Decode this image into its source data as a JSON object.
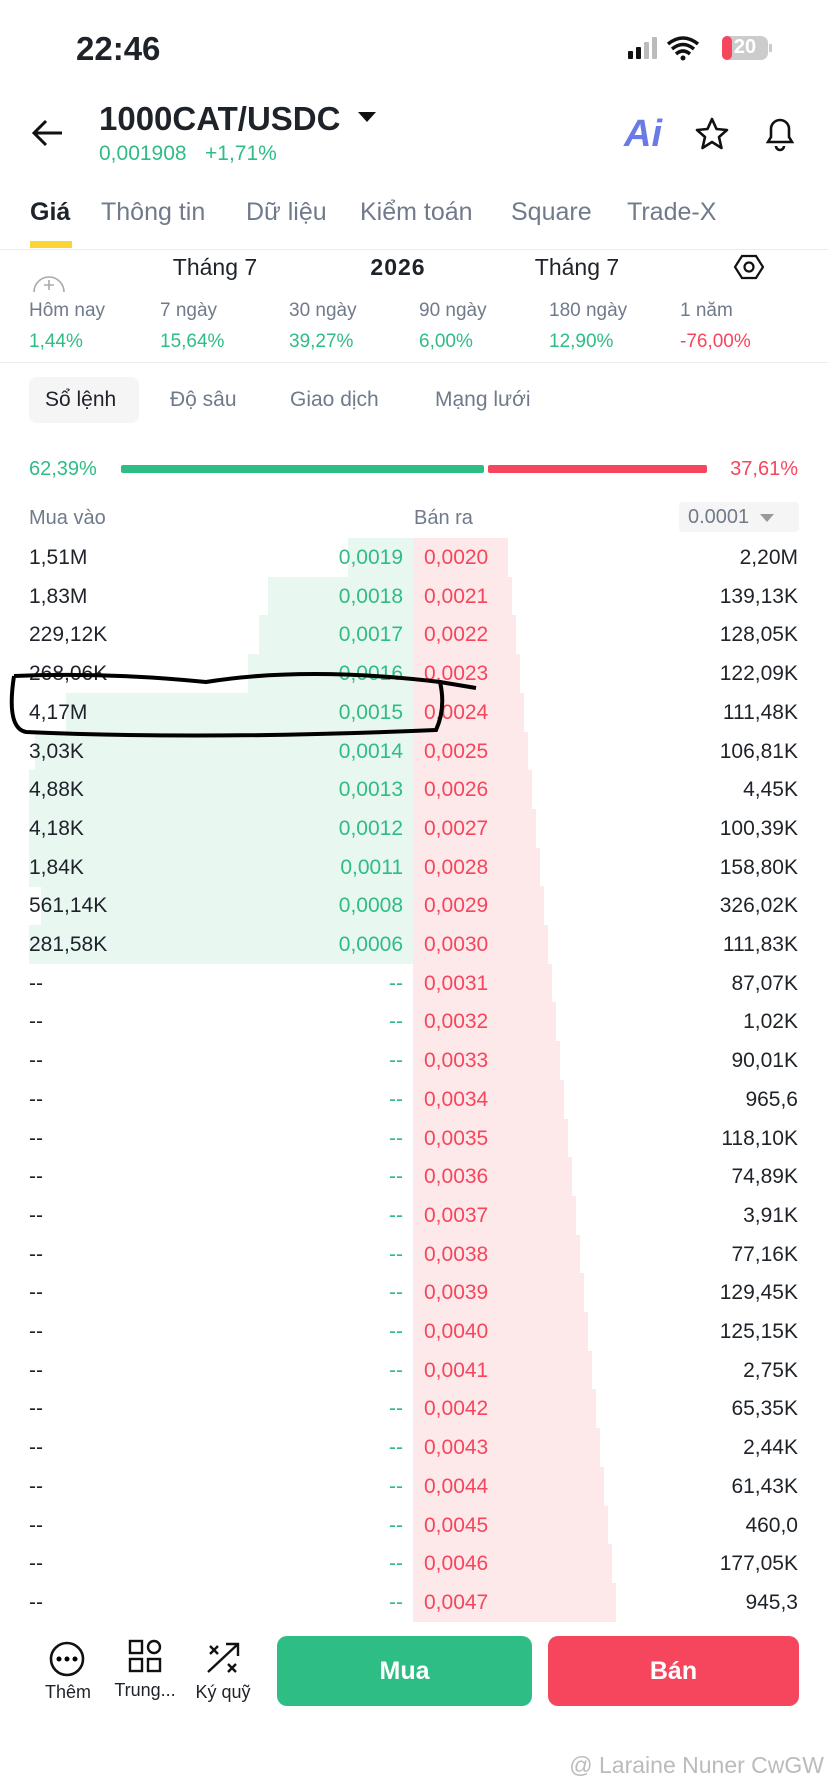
{
  "status": {
    "time": "22:46",
    "battery": "20"
  },
  "header": {
    "pair": "1000CAT/USDC",
    "price": "0,001908",
    "change": "+1,71%",
    "ai": "Ai"
  },
  "tabs": [
    "Giá",
    "Thông tin",
    "Dữ liệu",
    "Kiểm toán",
    "Square",
    "Trade-X"
  ],
  "dates": [
    "Tháng 7",
    "2026",
    "Tháng 7"
  ],
  "periods": [
    {
      "label": "Hôm nay",
      "value": "1,44%"
    },
    {
      "label": "7 ngày",
      "value": "15,64%"
    },
    {
      "label": "30 ngày",
      "value": "39,27%"
    },
    {
      "label": "90 ngày",
      "value": "6,00%"
    },
    {
      "label": "180 ngày",
      "value": "12,90%"
    },
    {
      "label": "1 năm",
      "value": "-76,00%"
    }
  ],
  "subtabs": [
    "Sổ lệnh",
    "Độ sâu",
    "Giao dịch",
    "Mạng lưới"
  ],
  "ratio": {
    "buy": "62,39%",
    "sell": "37,61%"
  },
  "orderbook": {
    "buy_label": "Mua vào",
    "sell_label": "Bán ra",
    "precision": "0.0001",
    "rows": [
      [
        "1,51M",
        "0,0019",
        "0,0020",
        "2,20M"
      ],
      [
        "1,83M",
        "0,0018",
        "0,0021",
        "139,13K"
      ],
      [
        "229,12K",
        "0,0017",
        "0,0022",
        "128,05K"
      ],
      [
        "268,06K",
        "0,0016",
        "0,0023",
        "122,09K"
      ],
      [
        "4,17M",
        "0,0015",
        "0,0024",
        "111,48K"
      ],
      [
        "3,03K",
        "0,0014",
        "0,0025",
        "106,81K"
      ],
      [
        "4,88K",
        "0,0013",
        "0,0026",
        "4,45K"
      ],
      [
        "4,18K",
        "0,0012",
        "0,0027",
        "100,39K"
      ],
      [
        "1,84K",
        "0,0011",
        "0,0028",
        "158,80K"
      ],
      [
        "561,14K",
        "0,0008",
        "0,0029",
        "326,02K"
      ],
      [
        "281,58K",
        "0,0006",
        "0,0030",
        "111,83K"
      ],
      [
        "--",
        "--",
        "0,0031",
        "87,07K"
      ],
      [
        "--",
        "--",
        "0,0032",
        "1,02K"
      ],
      [
        "--",
        "--",
        "0,0033",
        "90,01K"
      ],
      [
        "--",
        "--",
        "0,0034",
        "965,6"
      ],
      [
        "--",
        "--",
        "0,0035",
        "118,10K"
      ],
      [
        "--",
        "--",
        "0,0036",
        "74,89K"
      ],
      [
        "--",
        "--",
        "0,0037",
        "3,91K"
      ],
      [
        "--",
        "--",
        "0,0038",
        "77,16K"
      ],
      [
        "--",
        "--",
        "0,0039",
        "129,45K"
      ],
      [
        "--",
        "--",
        "0,0040",
        "125,15K"
      ],
      [
        "--",
        "--",
        "0,0041",
        "2,75K"
      ],
      [
        "--",
        "--",
        "0,0042",
        "65,35K"
      ],
      [
        "--",
        "--",
        "0,0043",
        "2,44K"
      ],
      [
        "--",
        "--",
        "0,0044",
        "61,43K"
      ],
      [
        "--",
        "--",
        "0,0045",
        "460,0"
      ],
      [
        "--",
        "--",
        "0,0046",
        "177,05K"
      ],
      [
        "--",
        "--",
        "0,0047",
        "945,3"
      ]
    ]
  },
  "bottom": {
    "more": "Thêm",
    "center": "Trung...",
    "margin": "Ký quỹ",
    "buy": "Mua",
    "sell": "Bán"
  },
  "watermark": "@ Laraine Nuner CwGW"
}
